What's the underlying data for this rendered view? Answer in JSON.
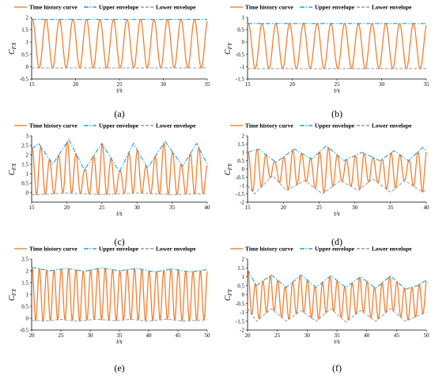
{
  "colors": {
    "time": "#f08030",
    "upper": "#1f9fd8",
    "lower": "#9a9a9a",
    "axis": "#000000"
  },
  "chart_data": [
    {
      "type": "line",
      "caption": "(a)",
      "xlabel": "t/s",
      "ylabel": "C_FX",
      "xlim": [
        15,
        35
      ],
      "ylim": [
        -0.5,
        2
      ],
      "xticks": [
        15,
        20,
        25,
        30,
        35
      ],
      "yticks": [
        -0.5,
        0,
        0.5,
        1,
        1.5,
        2
      ],
      "series": [
        {
          "name": "Time history curve",
          "kind": "oscillation",
          "cycles": 13,
          "upper": [
            [
              15,
              1.92
            ],
            [
              35,
              1.92
            ]
          ],
          "lower": [
            [
              15,
              -0.05
            ],
            [
              35,
              -0.05
            ]
          ]
        },
        {
          "name": "Upper envelope",
          "values": [
            [
              15,
              1.92
            ],
            [
              35,
              1.92
            ]
          ]
        },
        {
          "name": "Lower envelope",
          "values": [
            [
              15,
              -0.05
            ],
            [
              35,
              -0.05
            ]
          ]
        }
      ]
    },
    {
      "type": "line",
      "caption": "(b)",
      "xlabel": "t/s",
      "ylabel": "C_FY",
      "xlim": [
        15,
        35
      ],
      "ylim": [
        -1.5,
        1
      ],
      "xticks": [
        15,
        20,
        25,
        30,
        35
      ],
      "yticks": [
        -1.5,
        -1,
        -0.5,
        0,
        0.5,
        1
      ],
      "series": [
        {
          "name": "Time history curve",
          "kind": "oscillation",
          "cycles": 13,
          "upper": [
            [
              15,
              0.75
            ],
            [
              35,
              0.75
            ]
          ],
          "lower": [
            [
              15,
              -1.08
            ],
            [
              35,
              -1.08
            ]
          ]
        },
        {
          "name": "Upper envelope",
          "values": [
            [
              15,
              0.75
            ],
            [
              35,
              0.75
            ]
          ]
        },
        {
          "name": "Lower envelope",
          "values": [
            [
              15,
              -1.08
            ],
            [
              35,
              -1.08
            ]
          ]
        }
      ]
    },
    {
      "type": "line",
      "caption": "(c)",
      "xlabel": "t/s",
      "ylabel": "C_FX",
      "xlim": [
        15,
        40
      ],
      "ylim": [
        -0.5,
        3
      ],
      "xticks": [
        15,
        20,
        25,
        30,
        35,
        40
      ],
      "yticks": [
        0,
        0.5,
        1,
        1.5,
        2,
        2.5,
        3
      ],
      "series": [
        {
          "name": "Time history curve",
          "kind": "oscillation",
          "cycles": 20,
          "upper": [
            [
              15,
              2.3
            ],
            [
              16,
              2.6
            ],
            [
              18,
              1.5
            ],
            [
              20.3,
              2.8
            ],
            [
              22.5,
              1.2
            ],
            [
              25,
              2.6
            ],
            [
              27.5,
              1.1
            ],
            [
              29.5,
              2.6
            ],
            [
              31.5,
              1.3
            ],
            [
              34,
              2.7
            ],
            [
              36.5,
              1.4
            ],
            [
              38.5,
              2.6
            ],
            [
              40,
              1.5
            ]
          ],
          "lower": [
            [
              15,
              -0.12
            ],
            [
              20,
              -0.02
            ],
            [
              25,
              -0.1
            ],
            [
              30,
              -0.02
            ],
            [
              35,
              -0.1
            ],
            [
              40,
              -0.05
            ]
          ]
        },
        {
          "name": "Upper envelope",
          "values": [
            [
              15,
              2.3
            ],
            [
              16,
              2.6
            ],
            [
              18,
              1.5
            ],
            [
              20.3,
              2.8
            ],
            [
              22.5,
              1.2
            ],
            [
              25,
              2.6
            ],
            [
              27.5,
              1.1
            ],
            [
              29.5,
              2.6
            ],
            [
              31.5,
              1.3
            ],
            [
              34,
              2.7
            ],
            [
              36.5,
              1.4
            ],
            [
              38.5,
              2.6
            ],
            [
              40,
              1.5
            ]
          ]
        },
        {
          "name": "Lower envelope",
          "values": [
            [
              15,
              -0.12
            ],
            [
              20,
              -0.02
            ],
            [
              25,
              -0.1
            ],
            [
              30,
              -0.02
            ],
            [
              35,
              -0.1
            ],
            [
              40,
              -0.05
            ]
          ]
        }
      ]
    },
    {
      "type": "line",
      "caption": "(d)",
      "xlabel": "t/s",
      "ylabel": "C_FY",
      "xlim": [
        15,
        40
      ],
      "ylim": [
        -2,
        2
      ],
      "xticks": [
        15,
        20,
        25,
        30,
        35,
        40
      ],
      "yticks": [
        -2,
        -1.5,
        -1,
        -0.5,
        0,
        0.5,
        1,
        1.5,
        2
      ],
      "series": [
        {
          "name": "Time history curve",
          "kind": "oscillation",
          "cycles": 20,
          "upper": [
            [
              15,
              1.0
            ],
            [
              16.5,
              1.2
            ],
            [
              19,
              0.4
            ],
            [
              21.5,
              1.2
            ],
            [
              24,
              0.6
            ],
            [
              26,
              1.4
            ],
            [
              28.5,
              0.5
            ],
            [
              31,
              1.0
            ],
            [
              33.5,
              0.5
            ],
            [
              35.5,
              1.1
            ],
            [
              37.5,
              0.5
            ],
            [
              39.5,
              1.3
            ],
            [
              40,
              1.1
            ]
          ],
          "lower": [
            [
              15,
              -1.0
            ],
            [
              16,
              -1.5
            ],
            [
              18.5,
              -0.4
            ],
            [
              20.5,
              -1.3
            ],
            [
              23,
              -0.7
            ],
            [
              25.5,
              -1.5
            ],
            [
              28,
              -0.7
            ],
            [
              30.5,
              -1.3
            ],
            [
              32.5,
              -0.6
            ],
            [
              35,
              -1.4
            ],
            [
              37,
              -0.7
            ],
            [
              39.5,
              -1.4
            ],
            [
              40,
              -1.2
            ]
          ]
        },
        {
          "name": "Upper envelope",
          "values": [
            [
              15,
              1.0
            ],
            [
              16.5,
              1.2
            ],
            [
              19,
              0.4
            ],
            [
              21.5,
              1.2
            ],
            [
              24,
              0.6
            ],
            [
              26,
              1.4
            ],
            [
              28.5,
              0.5
            ],
            [
              31,
              1.0
            ],
            [
              33.5,
              0.5
            ],
            [
              35.5,
              1.1
            ],
            [
              37.5,
              0.5
            ],
            [
              39.5,
              1.3
            ],
            [
              40,
              1.1
            ]
          ]
        },
        {
          "name": "Lower envelope",
          "values": [
            [
              15,
              -1.0
            ],
            [
              16,
              -1.5
            ],
            [
              18.5,
              -0.4
            ],
            [
              20.5,
              -1.3
            ],
            [
              23,
              -0.7
            ],
            [
              25.5,
              -1.5
            ],
            [
              28,
              -0.7
            ],
            [
              30.5,
              -1.3
            ],
            [
              32.5,
              -0.6
            ],
            [
              35,
              -1.4
            ],
            [
              37,
              -0.7
            ],
            [
              39.5,
              -1.4
            ],
            [
              40,
              -1.2
            ]
          ]
        }
      ]
    },
    {
      "type": "line",
      "caption": "(e)",
      "xlabel": "t/s",
      "ylabel": "C_FX",
      "xlim": [
        20,
        50
      ],
      "ylim": [
        -0.5,
        2.5
      ],
      "xticks": [
        20,
        25,
        30,
        35,
        40,
        45,
        50
      ],
      "yticks": [
        -0.5,
        0,
        0.5,
        1,
        1.5,
        2,
        2.5
      ],
      "series": [
        {
          "name": "Time history curve",
          "kind": "oscillation",
          "cycles": 24,
          "upper": [
            [
              20,
              2.15
            ],
            [
              23,
              2.0
            ],
            [
              26,
              2.1
            ],
            [
              29,
              1.98
            ],
            [
              32,
              2.12
            ],
            [
              35,
              2.0
            ],
            [
              38,
              2.1
            ],
            [
              41,
              1.95
            ],
            [
              44,
              2.08
            ],
            [
              47,
              1.95
            ],
            [
              50,
              2.05
            ]
          ],
          "lower": [
            [
              20,
              -0.08
            ],
            [
              22,
              -0.12
            ],
            [
              25,
              -0.05
            ],
            [
              28,
              -0.12
            ],
            [
              31,
              -0.04
            ],
            [
              34,
              -0.1
            ],
            [
              37,
              -0.05
            ],
            [
              40,
              -0.12
            ],
            [
              43,
              -0.04
            ],
            [
              46,
              -0.12
            ],
            [
              50,
              -0.06
            ]
          ]
        },
        {
          "name": "Upper envelope",
          "values": [
            [
              20,
              2.15
            ],
            [
              23,
              2.0
            ],
            [
              26,
              2.1
            ],
            [
              29,
              1.98
            ],
            [
              32,
              2.12
            ],
            [
              35,
              2.0
            ],
            [
              38,
              2.1
            ],
            [
              41,
              1.95
            ],
            [
              44,
              2.08
            ],
            [
              47,
              1.95
            ],
            [
              50,
              2.05
            ]
          ]
        },
        {
          "name": "Lower envelope",
          "values": [
            [
              20,
              -0.08
            ],
            [
              22,
              -0.12
            ],
            [
              25,
              -0.05
            ],
            [
              28,
              -0.12
            ],
            [
              31,
              -0.04
            ],
            [
              34,
              -0.1
            ],
            [
              37,
              -0.05
            ],
            [
              40,
              -0.12
            ],
            [
              43,
              -0.04
            ],
            [
              46,
              -0.12
            ],
            [
              50,
              -0.06
            ]
          ]
        }
      ]
    },
    {
      "type": "line",
      "caption": "(f)",
      "xlabel": "t/s",
      "ylabel": "C_FY",
      "xlim": [
        20,
        50
      ],
      "ylim": [
        -2,
        2
      ],
      "xticks": [
        20,
        25,
        30,
        35,
        40,
        45,
        50
      ],
      "yticks": [
        -2,
        -1.5,
        -1,
        -0.5,
        0,
        0.5,
        1,
        1.5,
        2
      ],
      "series": [
        {
          "name": "Time history curve",
          "kind": "oscillation",
          "cycles": 24,
          "upper": [
            [
              20,
              1.4
            ],
            [
              21.5,
              0.5
            ],
            [
              24,
              1.1
            ],
            [
              26.5,
              0.4
            ],
            [
              29,
              1.1
            ],
            [
              31.5,
              0.4
            ],
            [
              34,
              1.05
            ],
            [
              36.5,
              0.4
            ],
            [
              39,
              1.0
            ],
            [
              41.5,
              0.35
            ],
            [
              44,
              1.05
            ],
            [
              46.5,
              0.3
            ],
            [
              48.5,
              0.5
            ],
            [
              50,
              0.8
            ]
          ],
          "lower": [
            [
              20,
              -0.8
            ],
            [
              21.5,
              -1.5
            ],
            [
              24,
              -0.8
            ],
            [
              26.5,
              -1.5
            ],
            [
              29,
              -0.9
            ],
            [
              31.5,
              -1.5
            ],
            [
              34,
              -0.8
            ],
            [
              36.5,
              -1.55
            ],
            [
              39,
              -0.9
            ],
            [
              41.5,
              -1.5
            ],
            [
              44,
              -0.8
            ],
            [
              46.5,
              -1.5
            ],
            [
              50,
              -1.0
            ]
          ]
        },
        {
          "name": "Upper envelope",
          "values": [
            [
              20,
              1.4
            ],
            [
              21.5,
              0.5
            ],
            [
              24,
              1.1
            ],
            [
              26.5,
              0.4
            ],
            [
              29,
              1.1
            ],
            [
              31.5,
              0.4
            ],
            [
              34,
              1.05
            ],
            [
              36.5,
              0.4
            ],
            [
              39,
              1.0
            ],
            [
              41.5,
              0.35
            ],
            [
              44,
              1.05
            ],
            [
              46.5,
              0.3
            ],
            [
              48.5,
              0.5
            ],
            [
              50,
              0.8
            ]
          ]
        },
        {
          "name": "Lower envelope",
          "values": [
            [
              20,
              -0.8
            ],
            [
              21.5,
              -1.5
            ],
            [
              24,
              -0.8
            ],
            [
              26.5,
              -1.5
            ],
            [
              29,
              -0.9
            ],
            [
              31.5,
              -1.5
            ],
            [
              34,
              -0.8
            ],
            [
              36.5,
              -1.55
            ],
            [
              39,
              -0.9
            ],
            [
              41.5,
              -1.5
            ],
            [
              44,
              -0.8
            ],
            [
              46.5,
              -1.5
            ],
            [
              50,
              -1.0
            ]
          ]
        }
      ]
    }
  ]
}
